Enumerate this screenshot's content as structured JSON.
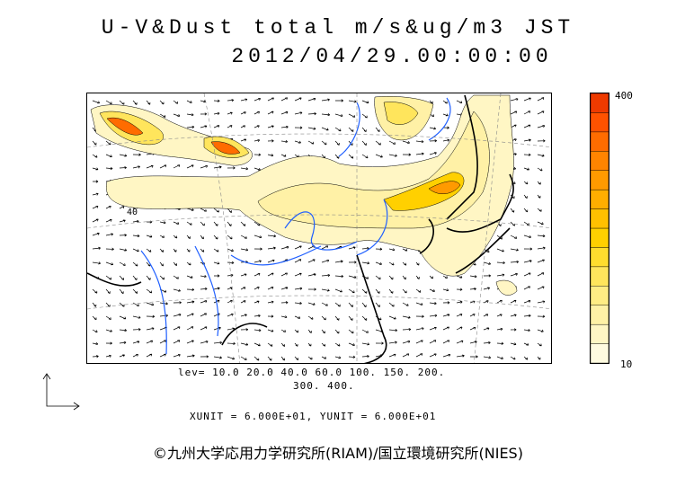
{
  "title": {
    "line1": "U-V&Dust total m/s&ug/m3 JST",
    "line2": "2012/04/29.00:00:00"
  },
  "legend": {
    "levels_line1": "lev= 10.0 20.0 40.0 60.0 100. 150. 200.",
    "levels_line2": "300. 400.",
    "units_line": "XUNIT = 6.000E+01, YUNIT = 6.000E+01"
  },
  "colorbar": {
    "max_label": "400",
    "min_label": "10",
    "colors": [
      "#fffbe0",
      "#fff6c4",
      "#fff1a6",
      "#ffec84",
      "#ffe55c",
      "#ffdd2e",
      "#ffd000",
      "#ffc000",
      "#ffae00",
      "#ff9a00",
      "#ff8400",
      "#ff6c00",
      "#ff5200",
      "#ee3a00"
    ]
  },
  "footer": "©九州大学応用力学研究所(RIAM)/国立環境研究所(NIES)",
  "map_labels": {
    "contour_label": "40"
  },
  "colors": {
    "coast": "#000000",
    "rivers": "#1f5fff",
    "dust_low": "#fff6c4",
    "dust_mid": "#ffe55c",
    "dust_high": "#ff6c00"
  }
}
